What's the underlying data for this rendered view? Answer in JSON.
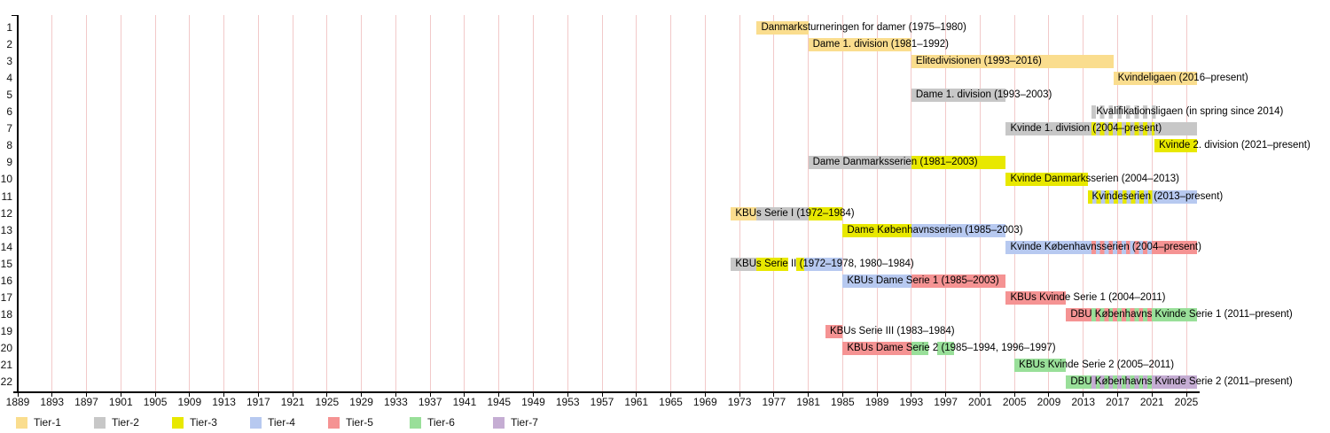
{
  "colors": {
    "background": "#ffffff",
    "grid": "#f2c9c9",
    "axis": "#000000",
    "text": "#000000"
  },
  "chart_data": {
    "type": "gantt",
    "x_axis": {
      "unit": "year",
      "min": 1889,
      "max": 2026,
      "ticks": [
        1889,
        1893,
        1897,
        1901,
        1905,
        1909,
        1913,
        1917,
        1921,
        1925,
        1929,
        1933,
        1937,
        1941,
        1945,
        1949,
        1953,
        1957,
        1961,
        1965,
        1969,
        1973,
        1977,
        1981,
        1985,
        1989,
        1993,
        1997,
        2001,
        2005,
        2009,
        2013,
        2017,
        2021,
        2025
      ]
    },
    "y_axis": {
      "row_numbers": [
        1,
        2,
        3,
        4,
        5,
        6,
        7,
        8,
        9,
        10,
        11,
        12,
        13,
        14,
        15,
        16,
        17,
        18,
        19,
        20,
        21,
        22
      ]
    },
    "tiers": [
      {
        "id": "1",
        "label": "Tier-1",
        "color": "#fadd8e"
      },
      {
        "id": "2",
        "label": "Tier-2",
        "color": "#c7c7c7"
      },
      {
        "id": "3",
        "label": "Tier-3",
        "color": "#e8e800"
      },
      {
        "id": "4",
        "label": "Tier-4",
        "color": "#b7c9f0"
      },
      {
        "id": "5",
        "label": "Tier-5",
        "color": "#f59393"
      },
      {
        "id": "6",
        "label": "Tier-6",
        "color": "#99df99"
      },
      {
        "id": "7",
        "label": "Tier-7",
        "color": "#c5add3"
      }
    ],
    "rows": [
      {
        "n": 1,
        "label": "Danmarksturneringen for damer (1975–1980)",
        "segments": [
          {
            "start": 1975,
            "end": 1981,
            "tier": "1"
          }
        ]
      },
      {
        "n": 2,
        "label": "Dame 1. division (1981–1992)",
        "segments": [
          {
            "start": 1981,
            "end": 1993,
            "tier": "1"
          }
        ]
      },
      {
        "n": 3,
        "label": "Elitedivisionen (1993–2016)",
        "segments": [
          {
            "start": 1993,
            "end": 2016.5,
            "tier": "1"
          }
        ]
      },
      {
        "n": 4,
        "label": "Kvindeligaen (2016–present)",
        "segments": [
          {
            "start": 2016.5,
            "end": 2026.2,
            "tier": "1"
          }
        ]
      },
      {
        "n": 5,
        "label": "Dame 1. division (1993–2003)",
        "segments": [
          {
            "start": 1993,
            "end": 2004,
            "tier": "2"
          }
        ]
      },
      {
        "n": 6,
        "label": "Kvalifikationsligaen (in spring since 2014)",
        "segments": [
          {
            "start": 2014,
            "end": 2021.6,
            "stripe_tiers": [
              "2",
              ""
            ]
          }
        ]
      },
      {
        "n": 7,
        "label": "Kvinde 1. division (2004–present)",
        "segments": [
          {
            "start": 2004,
            "end": 2014,
            "tier": "2"
          },
          {
            "start": 2014,
            "end": 2021.3,
            "stripe_tiers": [
              "3",
              "2"
            ]
          },
          {
            "start": 2021.3,
            "end": 2026.2,
            "tier": "2"
          }
        ]
      },
      {
        "n": 8,
        "label": "Kvinde 2. division (2021–present)",
        "segments": [
          {
            "start": 2021.3,
            "end": 2026.2,
            "tier": "3"
          }
        ]
      },
      {
        "n": 9,
        "label": "Dame Danmarksserien (1981–2003)",
        "segments": [
          {
            "start": 1981,
            "end": 1993,
            "tier": "2"
          },
          {
            "start": 1993,
            "end": 2004,
            "tier": "3"
          }
        ]
      },
      {
        "n": 10,
        "label": "Kvinde Danmarksserien (2004–2013)",
        "segments": [
          {
            "start": 2004,
            "end": 2013.5,
            "tier": "3"
          }
        ]
      },
      {
        "n": 11,
        "label": "Kvindeserien (2013–present)",
        "segments": [
          {
            "start": 2013.5,
            "end": 2021.3,
            "stripe_tiers": [
              "3",
              "4"
            ]
          },
          {
            "start": 2021.3,
            "end": 2026.2,
            "tier": "4"
          }
        ]
      },
      {
        "n": 12,
        "label": "KBUs Serie I (1972–1984)",
        "segments": [
          {
            "start": 1972,
            "end": 1975,
            "tier": "1"
          },
          {
            "start": 1975,
            "end": 1981,
            "tier": "2"
          },
          {
            "start": 1981,
            "end": 1985,
            "tier": "3"
          }
        ]
      },
      {
        "n": 13,
        "label": "Dame Københavnsserien (1985–2003)",
        "segments": [
          {
            "start": 1985,
            "end": 1993,
            "tier": "3"
          },
          {
            "start": 1993,
            "end": 2004,
            "tier": "4"
          }
        ]
      },
      {
        "n": 14,
        "label": "Kvinde Københavnsserien (2004–present)",
        "segments": [
          {
            "start": 2004,
            "end": 2014,
            "tier": "4"
          },
          {
            "start": 2014,
            "end": 2021.3,
            "stripe_tiers": [
              "5",
              "4"
            ]
          },
          {
            "start": 2021.3,
            "end": 2026.2,
            "tier": "5"
          }
        ]
      },
      {
        "n": 15,
        "label": "KBUs Serie II (1972–1978, 1980–1984)",
        "segments": [
          {
            "start": 1972,
            "end": 1975,
            "tier": "2"
          },
          {
            "start": 1975,
            "end": 1978.7,
            "tier": "3"
          },
          {
            "start": 1979.6,
            "end": 1980.5,
            "tier": "3"
          },
          {
            "start": 1980.5,
            "end": 1985,
            "tier": "4"
          }
        ]
      },
      {
        "n": 16,
        "label": "KBUs Dame Serie 1 (1985–2003)",
        "segments": [
          {
            "start": 1985,
            "end": 1993,
            "tier": "4"
          },
          {
            "start": 1993,
            "end": 2004,
            "tier": "5"
          }
        ]
      },
      {
        "n": 17,
        "label": "KBUs Kvinde Serie 1 (2004–2011)",
        "segments": [
          {
            "start": 2004,
            "end": 2011,
            "tier": "5"
          }
        ]
      },
      {
        "n": 18,
        "label": "DBU Københavns Kvinde Serie 1 (2011–present)",
        "segments": [
          {
            "start": 2011,
            "end": 2014,
            "tier": "5"
          },
          {
            "start": 2014,
            "end": 2021.3,
            "stripe_tiers": [
              "6",
              "5"
            ]
          },
          {
            "start": 2021.3,
            "end": 2026.2,
            "tier": "6"
          }
        ]
      },
      {
        "n": 19,
        "label": "KBUs Serie III (1983–1984)",
        "segments": [
          {
            "start": 1983,
            "end": 1985,
            "tier": "5"
          }
        ]
      },
      {
        "n": 20,
        "label": "KBUs Dame Serie 2 (1985–1994, 1996–1997)",
        "segments": [
          {
            "start": 1985,
            "end": 1993,
            "tier": "5"
          },
          {
            "start": 1993,
            "end": 1995,
            "tier": "6"
          },
          {
            "start": 1996,
            "end": 1998,
            "tier": "6"
          }
        ]
      },
      {
        "n": 21,
        "label": "KBUs Kvinde Serie 2 (2005–2011)",
        "segments": [
          {
            "start": 2005,
            "end": 2011,
            "tier": "6"
          }
        ]
      },
      {
        "n": 22,
        "label": "DBU Københavns Kvinde Serie 2 (2011–present)",
        "segments": [
          {
            "start": 2011,
            "end": 2014,
            "tier": "6"
          },
          {
            "start": 2014,
            "end": 2021.3,
            "stripe_tiers": [
              "7",
              "6"
            ]
          },
          {
            "start": 2021.3,
            "end": 2026.2,
            "tier": "7"
          }
        ]
      }
    ],
    "legend": {
      "items": [
        "Tier-1",
        "Tier-2",
        "Tier-3",
        "Tier-4",
        "Tier-5",
        "Tier-6",
        "Tier-7"
      ]
    }
  }
}
